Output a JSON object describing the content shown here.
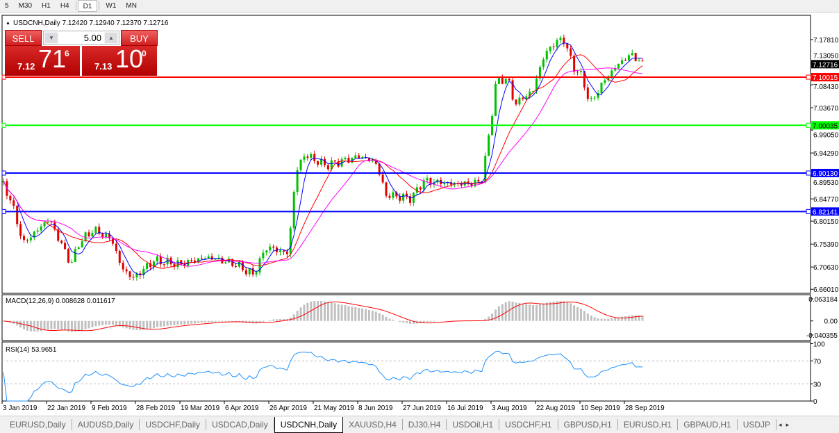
{
  "toolbar": {
    "timeframes": [
      "5",
      "M30",
      "H1",
      "H4",
      "D1",
      "W1",
      "MN"
    ],
    "active": "D1"
  },
  "header": {
    "symbol_line": "USDCNH,Daily",
    "ohlc": "7.12420 7.12940 7.12370 7.12716"
  },
  "trade_panel": {
    "sell_label": "SELL",
    "buy_label": "BUY",
    "lot": "5.00",
    "sell": {
      "big_figure": "7.12",
      "pips": "71",
      "fraction": "6"
    },
    "buy": {
      "big_figure": "7.13",
      "pips": "10",
      "fraction": "0"
    }
  },
  "tabs": [
    "EURUSD,Daily",
    "AUDUSD,Daily",
    "USDCHF,Daily",
    "USDCAD,Daily",
    "USDCNH,Daily",
    "XAUUSD,H4",
    "DJ30,H4",
    "USDOil,H1",
    "USDCHF,H1",
    "GBPUSD,H1",
    "EURUSD,H1",
    "GBPAUD,H1",
    "USDJP"
  ],
  "active_tab": "USDCNH,Daily",
  "colors": {
    "bull": "#00c000",
    "bear": "#e00000",
    "ma_fast": "#0000ff",
    "ma_mid": "#ff0000",
    "ma_slow": "#ff00ff",
    "macd_hist": "#c0c0c0",
    "macd_signal": "#ff0000",
    "rsi": "#1e90ff"
  },
  "chart_data": {
    "type": "candlestick",
    "symbol": "USDCNH",
    "timeframe": "Daily",
    "ylim": [
      6.6601,
      7.1781
    ],
    "y_ticks": [
      "7.17810",
      "7.13050",
      "7.08430",
      "7.03670",
      "6.99050",
      "6.94290",
      "6.89530",
      "6.84770",
      "6.80150",
      "6.75390",
      "6.70630",
      "6.66010"
    ],
    "x_ticks": [
      "3 Jan 2019",
      "22 Jan 2019",
      "9 Feb 2019",
      "28 Feb 2019",
      "19 Mar 2019",
      "6 Apr 2019",
      "26 Apr 2019",
      "21 May 2019",
      "8 Jun 2019",
      "27 Jun 2019",
      "16 Jul 2019",
      "3 Aug 2019",
      "22 Aug 2019",
      "10 Sep 2019",
      "28 Sep 2019"
    ],
    "current_price": "7.12716",
    "horizontal_lines": [
      {
        "price": "7.10015",
        "color": "#ff0000"
      },
      {
        "price": "7.00035",
        "color": "#00ff00"
      },
      {
        "price": "6.90130",
        "color": "#0000ff"
      },
      {
        "price": "6.82141",
        "color": "#0000ff"
      }
    ],
    "close_path": [
      [
        "2019-01-03",
        6.882
      ],
      [
        "2019-01-07",
        6.842
      ],
      [
        "2019-01-12",
        6.755
      ],
      [
        "2019-01-23",
        6.806
      ],
      [
        "2019-02-01",
        6.712
      ],
      [
        "2019-02-04",
        6.755
      ],
      [
        "2019-02-10",
        6.784
      ],
      [
        "2019-02-18",
        6.763
      ],
      [
        "2019-02-22",
        6.705
      ],
      [
        "2019-02-27",
        6.683
      ],
      [
        "2019-03-08",
        6.72
      ],
      [
        "2019-03-19",
        6.712
      ],
      [
        "2019-03-30",
        6.727
      ],
      [
        "2019-04-11",
        6.712
      ],
      [
        "2019-04-19",
        6.69
      ],
      [
        "2019-04-25",
        6.748
      ],
      [
        "2019-05-07",
        6.734
      ],
      [
        "2019-05-11",
        6.9
      ],
      [
        "2019-05-16",
        6.94
      ],
      [
        "2019-05-26",
        6.917
      ],
      [
        "2019-06-09",
        6.936
      ],
      [
        "2019-06-16",
        6.921
      ],
      [
        "2019-06-20",
        6.856
      ],
      [
        "2019-07-01",
        6.849
      ],
      [
        "2019-07-06",
        6.885
      ],
      [
        "2019-07-20",
        6.878
      ],
      [
        "2019-07-30",
        6.882
      ],
      [
        "2019-08-02",
        6.972
      ],
      [
        "2019-08-05",
        7.087
      ],
      [
        "2019-08-10",
        7.1
      ],
      [
        "2019-08-13",
        7.044
      ],
      [
        "2019-08-21",
        7.073
      ],
      [
        "2019-08-25",
        7.138
      ],
      [
        "2019-08-29",
        7.167
      ],
      [
        "2019-09-03",
        7.181
      ],
      [
        "2019-09-07",
        7.123
      ],
      [
        "2019-09-11",
        7.1
      ],
      [
        "2019-09-14",
        7.044
      ],
      [
        "2019-09-20",
        7.094
      ],
      [
        "2019-09-26",
        7.13
      ],
      [
        "2019-10-01",
        7.148
      ],
      [
        "2019-10-05",
        7.127
      ]
    ],
    "indicators": {
      "macd": {
        "label": "MACD(12,26,9) 0.008628 0.011617",
        "ticks": [
          "0.063184",
          "0.00",
          "-0.040355"
        ],
        "ylim": [
          -0.040355,
          0.063184
        ]
      },
      "rsi": {
        "label": "RSI(14) 53.9651",
        "ticks": [
          "100",
          "70",
          "30",
          "0"
        ],
        "levels": [
          70,
          30
        ]
      }
    }
  }
}
